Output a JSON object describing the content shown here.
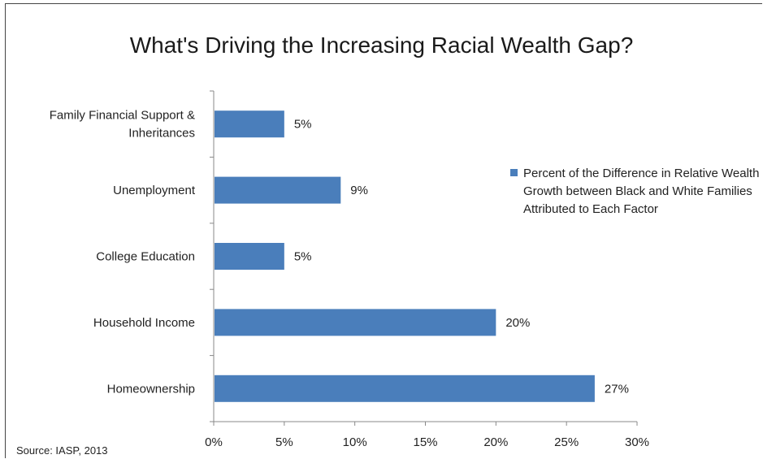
{
  "chart_data": {
    "type": "bar",
    "orientation": "horizontal",
    "title": "What's Driving the Increasing Racial Wealth Gap?",
    "categories": [
      "Family Financial Support & Inheritances",
      "Unemployment",
      "College Education",
      "Household Income",
      "Homeownership"
    ],
    "category_lines": [
      [
        "Family Financial Support &",
        "Inheritances"
      ],
      [
        "Unemployment"
      ],
      [
        "College Education"
      ],
      [
        "Household Income"
      ],
      [
        "Homeownership"
      ]
    ],
    "series": [
      {
        "name": "Percent of the Difference in Relative Wealth Growth between Black and White Families Attributed to Each Factor",
        "values": [
          5,
          9,
          5,
          20,
          27
        ],
        "value_labels": [
          "5%",
          "9%",
          "5%",
          "20%",
          "27%"
        ]
      }
    ],
    "xlim": [
      0,
      30
    ],
    "xticks": [
      "0%",
      "5%",
      "10%",
      "15%",
      "20%",
      "25%",
      "30%"
    ],
    "xtick_values": [
      0,
      5,
      10,
      15,
      20,
      25,
      30
    ],
    "legend_position": "right",
    "grid": false,
    "bar_color": "#4a7ebb"
  },
  "legend": {
    "text": "Percent of the Difference in Relative Wealth Growth between Black and White Families Attributed to Each Factor"
  },
  "source": "Source: IASP, 2013"
}
